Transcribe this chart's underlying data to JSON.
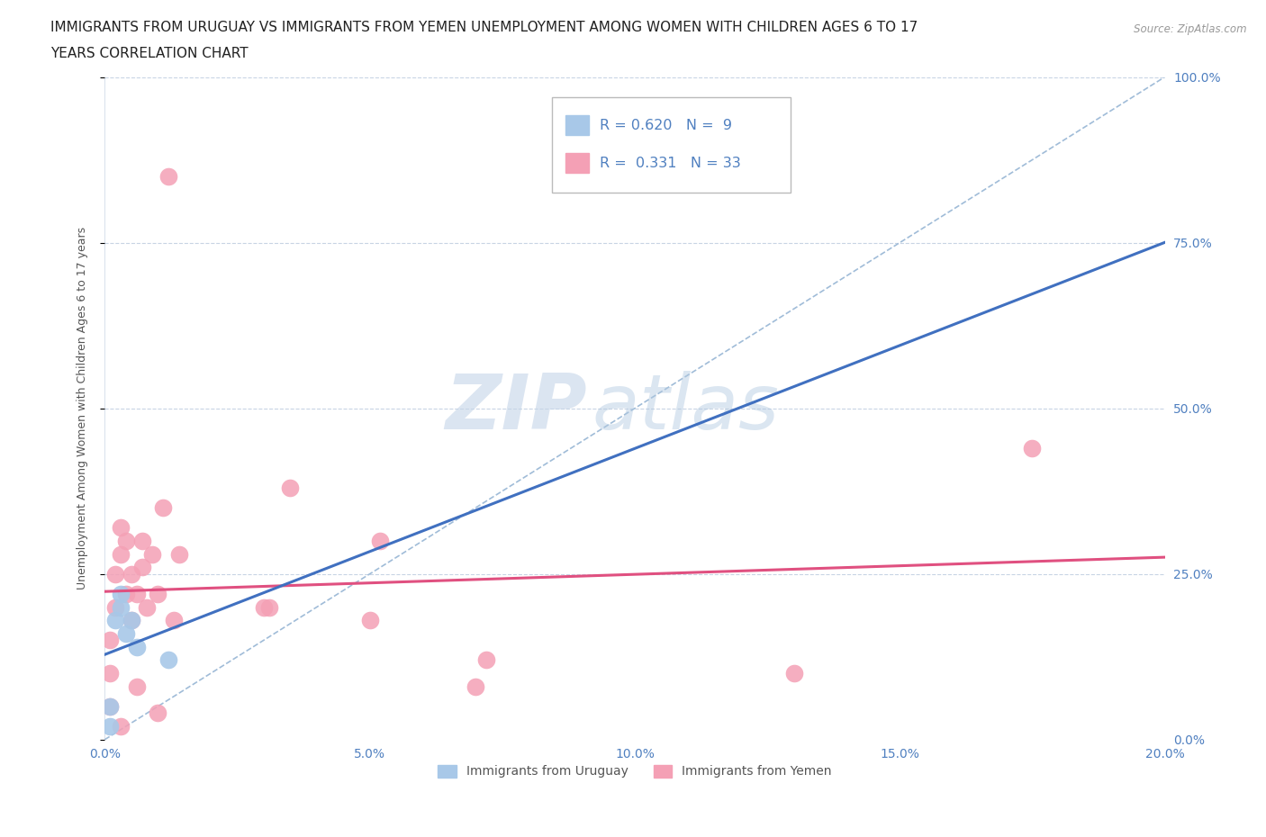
{
  "title_line1": "IMMIGRANTS FROM URUGUAY VS IMMIGRANTS FROM YEMEN UNEMPLOYMENT AMONG WOMEN WITH CHILDREN AGES 6 TO 17",
  "title_line2": "YEARS CORRELATION CHART",
  "source_text": "Source: ZipAtlas.com",
  "ylabel": "Unemployment Among Women with Children Ages 6 to 17 years",
  "xlabel_ticks": [
    "0.0%",
    "5.0%",
    "10.0%",
    "15.0%",
    "20.0%"
  ],
  "ylabel_ticks_right": [
    "0.0%",
    "25.0%",
    "50.0%",
    "75.0%",
    "100.0%"
  ],
  "x_range": [
    0.0,
    0.2
  ],
  "y_range": [
    0.0,
    1.0
  ],
  "uruguay_R": 0.62,
  "uruguay_N": 9,
  "yemen_R": 0.331,
  "yemen_N": 33,
  "uruguay_color": "#a8c8e8",
  "yemen_color": "#f4a0b5",
  "uruguay_line_color": "#4070c0",
  "yemen_line_color": "#e05080",
  "diagonal_color": "#a0bcd8",
  "background_color": "#ffffff",
  "uruguay_x": [
    0.001,
    0.001,
    0.002,
    0.003,
    0.003,
    0.004,
    0.005,
    0.006,
    0.012
  ],
  "uruguay_y": [
    0.02,
    0.05,
    0.18,
    0.2,
    0.22,
    0.16,
    0.18,
    0.14,
    0.12
  ],
  "yemen_x": [
    0.001,
    0.001,
    0.001,
    0.002,
    0.002,
    0.003,
    0.003,
    0.003,
    0.004,
    0.004,
    0.005,
    0.005,
    0.006,
    0.006,
    0.007,
    0.007,
    0.008,
    0.009,
    0.01,
    0.01,
    0.011,
    0.012,
    0.013,
    0.014,
    0.03,
    0.031,
    0.035,
    0.05,
    0.052,
    0.07,
    0.072,
    0.13,
    0.175
  ],
  "yemen_y": [
    0.05,
    0.1,
    0.15,
    0.2,
    0.25,
    0.02,
    0.28,
    0.32,
    0.22,
    0.3,
    0.18,
    0.25,
    0.08,
    0.22,
    0.26,
    0.3,
    0.2,
    0.28,
    0.04,
    0.22,
    0.35,
    0.85,
    0.18,
    0.28,
    0.2,
    0.2,
    0.38,
    0.18,
    0.3,
    0.08,
    0.12,
    0.1,
    0.44
  ],
  "watermark_zip": "ZIP",
  "watermark_atlas": "atlas",
  "grid_color": "#c8d4e4",
  "title_fontsize": 11,
  "axis_label_fontsize": 9,
  "tick_fontsize": 10,
  "tick_color": "#5080c0",
  "legend_label_color": "#5080c0"
}
